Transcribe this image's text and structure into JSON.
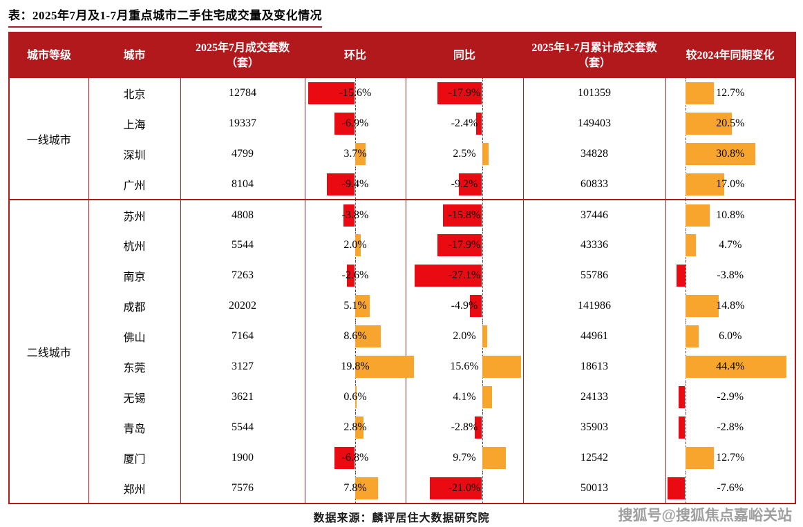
{
  "title": "表：2025年7月及1-7月重点城市二手住宅成交量及变化情况",
  "footer": {
    "source": "数据来源：麟评居住大数据研究院",
    "watermark": "搜狐号@搜狐焦点嘉峪关站"
  },
  "colors": {
    "header_bg": "#B2191D",
    "table_border": "#B2191D",
    "title_underline": "#B2191D",
    "bar_negative": "#EA0B12",
    "bar_positive": "#F7A52C"
  },
  "chart_data": {
    "type": "table",
    "title": "2025年7月及1-7月重点城市二手住宅成交量及变化情况",
    "columns": [
      "城市等级",
      "城市",
      "2025年7月成交套数（套）",
      "环比",
      "同比",
      "2025年1-7月累计成交套数（套）",
      "较2024年同期变化"
    ],
    "bar_columns": [
      "环比",
      "同比",
      "较2024年同期变化"
    ],
    "bar_style_note": "diverging in-cell bars from dotted zero axis: negative = red extending left, positive = orange extending right",
    "groups": [
      {
        "tier": "一线城市",
        "rows": [
          {
            "city": "北京",
            "jul_sales": 12784,
            "mom_pct": -15.6,
            "yoy_pct": -17.9,
            "cum_sales": 101359,
            "vs_2024_pct": 12.7
          },
          {
            "city": "上海",
            "jul_sales": 19337,
            "mom_pct": -6.9,
            "yoy_pct": -2.4,
            "cum_sales": 149403,
            "vs_2024_pct": 20.5
          },
          {
            "city": "深圳",
            "jul_sales": 4799,
            "mom_pct": 3.7,
            "yoy_pct": 2.5,
            "cum_sales": 34828,
            "vs_2024_pct": 30.8
          },
          {
            "city": "广州",
            "jul_sales": 8104,
            "mom_pct": -9.4,
            "yoy_pct": -9.2,
            "cum_sales": 60833,
            "vs_2024_pct": 17.0
          }
        ]
      },
      {
        "tier": "二线城市",
        "rows": [
          {
            "city": "苏州",
            "jul_sales": 4808,
            "mom_pct": -3.8,
            "yoy_pct": -15.8,
            "cum_sales": 37446,
            "vs_2024_pct": 10.8
          },
          {
            "city": "杭州",
            "jul_sales": 5544,
            "mom_pct": 2.0,
            "yoy_pct": -17.9,
            "cum_sales": 43336,
            "vs_2024_pct": 4.7
          },
          {
            "city": "南京",
            "jul_sales": 7263,
            "mom_pct": -2.6,
            "yoy_pct": -27.1,
            "cum_sales": 55786,
            "vs_2024_pct": -3.8
          },
          {
            "city": "成都",
            "jul_sales": 20202,
            "mom_pct": 5.1,
            "yoy_pct": -4.9,
            "cum_sales": 141986,
            "vs_2024_pct": 14.8
          },
          {
            "city": "佛山",
            "jul_sales": 7164,
            "mom_pct": 8.6,
            "yoy_pct": 2.0,
            "cum_sales": 44961,
            "vs_2024_pct": 6.0
          },
          {
            "city": "东莞",
            "jul_sales": 3127,
            "mom_pct": 19.8,
            "yoy_pct": 15.6,
            "cum_sales": 18613,
            "vs_2024_pct": 44.4
          },
          {
            "city": "无锡",
            "jul_sales": 3621,
            "mom_pct": 0.6,
            "yoy_pct": 4.1,
            "cum_sales": 24133,
            "vs_2024_pct": -2.9
          },
          {
            "city": "青岛",
            "jul_sales": 5544,
            "mom_pct": 2.8,
            "yoy_pct": -2.8,
            "cum_sales": 35903,
            "vs_2024_pct": -2.8
          },
          {
            "city": "厦门",
            "jul_sales": 1900,
            "mom_pct": -6.8,
            "yoy_pct": 9.7,
            "cum_sales": 12542,
            "vs_2024_pct": 12.7
          },
          {
            "city": "郑州",
            "jul_sales": 7576,
            "mom_pct": 7.8,
            "yoy_pct": -21.0,
            "cum_sales": 50013,
            "vs_2024_pct": -7.6
          }
        ]
      }
    ]
  }
}
